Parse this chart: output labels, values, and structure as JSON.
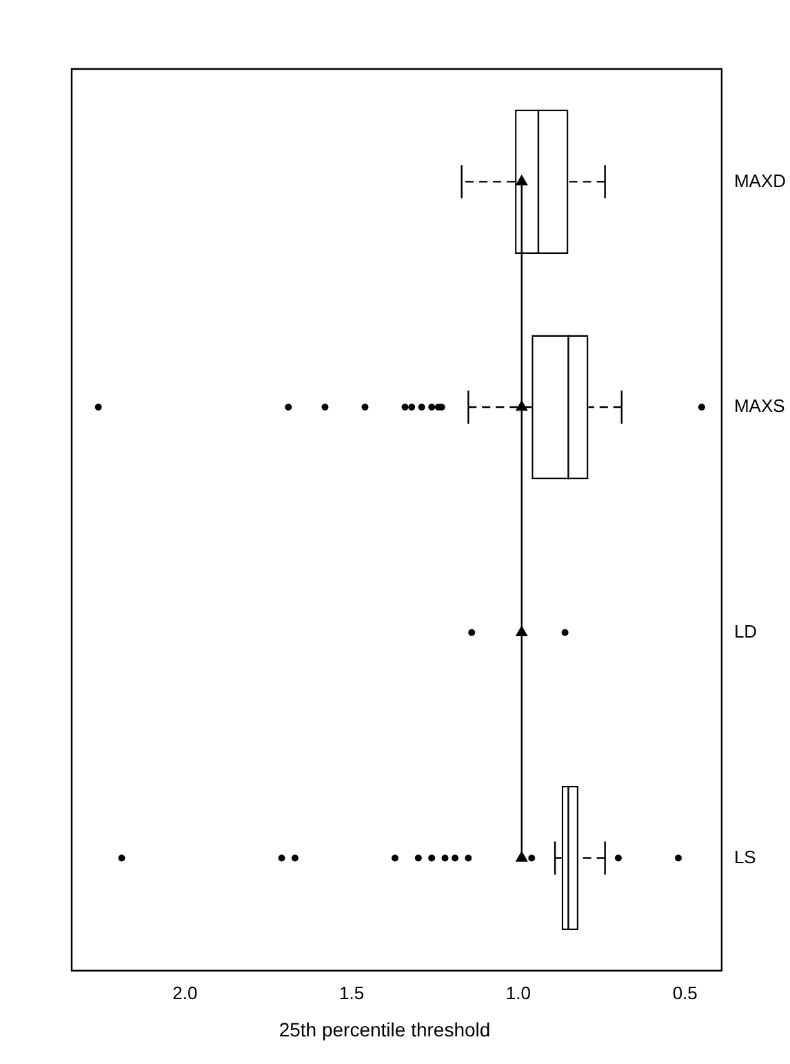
{
  "chart_data": {
    "type": "box",
    "orientation": "horizontal",
    "xlabel": "25th percentile threshold",
    "categories": [
      "MAXD",
      "MAXS",
      "LD",
      "LS"
    ],
    "boxes": [
      {
        "low": 0.74,
        "q1": 0.85,
        "median": 0.94,
        "q3": 1.01,
        "high": 1.17
      },
      {
        "low": 0.69,
        "q1": 0.79,
        "median": 0.85,
        "q3": 0.96,
        "high": 1.15,
        "outliers": [
          2.26,
          1.69,
          1.58,
          1.46,
          1.34,
          1.32,
          1.29,
          1.26,
          1.24,
          1.23,
          0.45
        ]
      },
      null,
      {
        "low": 0.74,
        "q1": 0.82,
        "median": 0.85,
        "q3": 0.87,
        "high": 0.89,
        "outliers": [
          2.19,
          1.71,
          1.67,
          1.37,
          1.3,
          1.26,
          1.22,
          1.19,
          1.15,
          0.96,
          0.7,
          0.52
        ]
      }
    ],
    "series": [
      {
        "type": "line",
        "color": "#000000",
        "marker": "triangle",
        "values": [
          0.99,
          0.99,
          0.99,
          0.99
        ]
      },
      {
        "type": "scatter",
        "color": "#000000",
        "x": [
          "LD",
          "LD"
        ],
        "values": [
          1.14,
          0.86
        ]
      }
    ],
    "xlim": [
      2.34,
      0.39
    ],
    "xticks": [
      {
        "value": 2,
        "label": "2.0"
      },
      {
        "value": 1.5,
        "label": "1.5"
      },
      {
        "value": 1,
        "label": "1.0"
      },
      {
        "value": 0.5,
        "label": "0.5"
      }
    ],
    "grid": false,
    "legend": false
  }
}
